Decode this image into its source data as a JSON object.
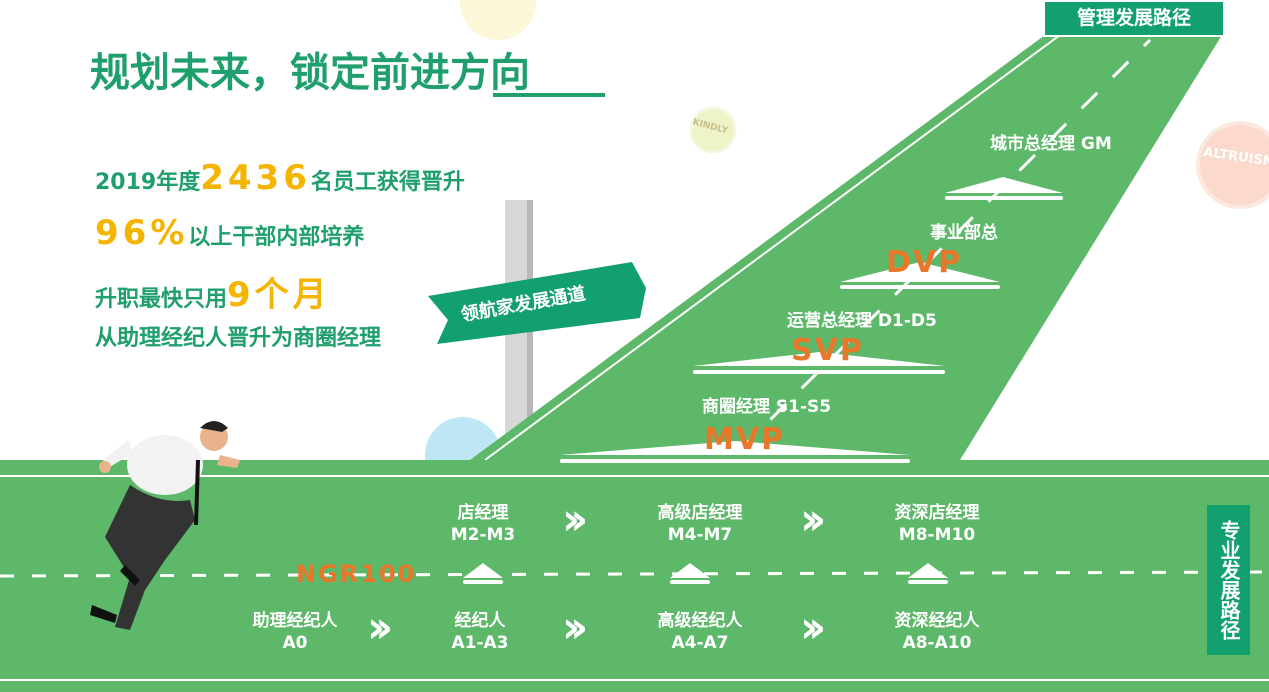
{
  "title": "规划未来，锁定前进方向",
  "stats": [
    {
      "pre": "2019年度",
      "hl": "2436",
      "post": "名员工获得晋升"
    },
    {
      "pre": "",
      "hl": "96%",
      "post": "以上干部内部培养"
    },
    {
      "pre": "升职最快只用",
      "hl": "9个月",
      "post": ""
    },
    {
      "pre": "从助理经纪人晋升为商圈经理",
      "hl": "",
      "post": ""
    }
  ],
  "signpost": "领航家发展通道",
  "bubbles": [
    "KINDLY",
    "ALTRUISM"
  ],
  "management": {
    "label": "管理发展路径",
    "levels": [
      {
        "title": "城市总经理 GM",
        "code": ""
      },
      {
        "title": "事业部总",
        "code": "DVP"
      },
      {
        "title": "运营总经理 D1-D5",
        "code": "SVP"
      },
      {
        "title": "商圈经理 S1-S5",
        "code": "MVP"
      }
    ]
  },
  "professional": {
    "label": "专业发展路径",
    "ngr": "NGR100",
    "store_row": [
      {
        "name": "店经理",
        "code": "M2-M3"
      },
      {
        "name": "高级店经理",
        "code": "M4-M7"
      },
      {
        "name": "资深店经理",
        "code": "M8-M10"
      }
    ],
    "agent_row": [
      {
        "name": "助理经纪人",
        "code": "A0"
      },
      {
        "name": "经纪人",
        "code": "A1-A3"
      },
      {
        "name": "高级经纪人",
        "code": "A4-A7"
      },
      {
        "name": "资深经纪人",
        "code": "A8-A10"
      }
    ]
  },
  "colors": {
    "road": "#5db86a",
    "title": "#1f9f6b",
    "highlight": "#f5b400",
    "code": "#e8772a",
    "badge": "#12a06e"
  }
}
